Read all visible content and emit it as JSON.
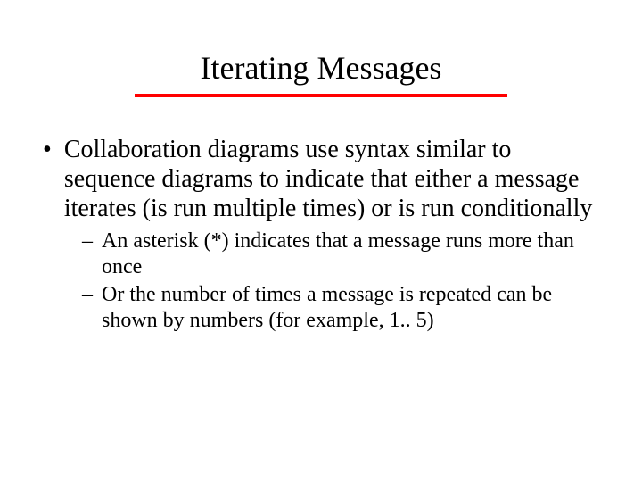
{
  "slide": {
    "title": "Iterating Messages",
    "underline_color": "#ff0000",
    "underline_width": 418,
    "underline_height": 4,
    "background_color": "#ffffff",
    "text_color": "#000000",
    "title_fontsize": 36,
    "body_fontsize": 28,
    "sub_fontsize": 24,
    "font_family": "Times New Roman",
    "bullets": [
      {
        "marker": "•",
        "text": "Collaboration diagrams use syntax similar to sequence diagrams to indicate that either a message iterates (is run multiple times) or is run conditionally",
        "sub": [
          {
            "marker": "–",
            "text": "An asterisk (*) indicates that a message runs more than once"
          },
          {
            "marker": "–",
            "text": "Or the number of times a message is repeated can be shown by numbers (for example, 1.. 5)"
          }
        ]
      }
    ]
  }
}
